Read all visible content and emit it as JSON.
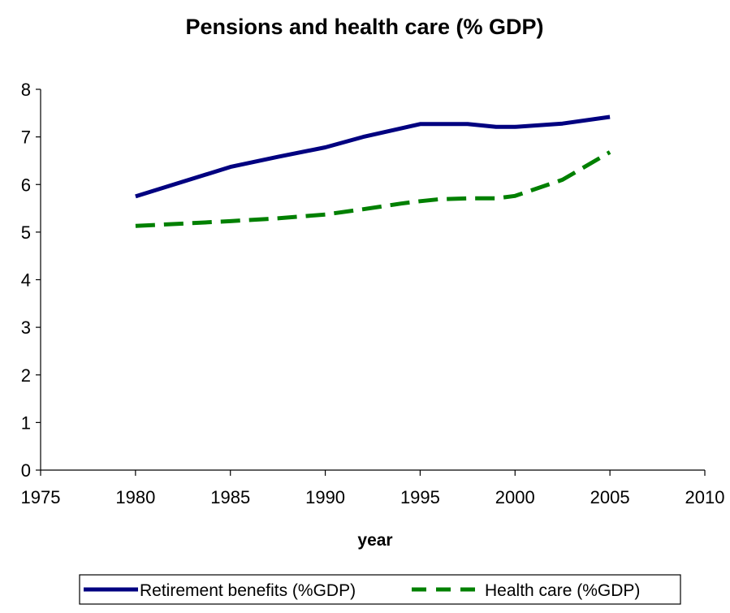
{
  "chart_data": {
    "type": "line",
    "title": "Pensions and health care (% GDP)",
    "xlabel": "year",
    "ylabel": "",
    "xlim": [
      1975,
      2010
    ],
    "ylim": [
      0,
      8
    ],
    "x_ticks": [
      "1975",
      "1980",
      "1985",
      "1990",
      "1995",
      "2000",
      "2005",
      "2010"
    ],
    "y_ticks": [
      "0",
      "1",
      "2",
      "3",
      "4",
      "5",
      "6",
      "7",
      "8"
    ],
    "grid": false,
    "legend_position": "bottom",
    "series": [
      {
        "name": "Retirement benefits (%GDP)",
        "color": "#000080",
        "style": "solid",
        "x": [
          1980,
          1985,
          1987.5,
          1990,
          1992,
          1994,
          1995,
          1996,
          1997.5,
          1999,
          2000,
          2002.5,
          2005
        ],
        "y": [
          5.75,
          6.37,
          6.58,
          6.78,
          7.0,
          7.18,
          7.27,
          7.27,
          7.27,
          7.21,
          7.21,
          7.28,
          7.42
        ]
      },
      {
        "name": "Health care (%GDP)",
        "color": "#008000",
        "style": "dashed",
        "x": [
          1980,
          1985,
          1987.5,
          1990,
          1992,
          1994,
          1995,
          1996,
          1997.5,
          1999,
          2000,
          2002.5,
          2005
        ],
        "y": [
          5.13,
          5.23,
          5.29,
          5.37,
          5.48,
          5.6,
          5.65,
          5.69,
          5.71,
          5.71,
          5.76,
          6.1,
          6.68
        ]
      }
    ]
  }
}
